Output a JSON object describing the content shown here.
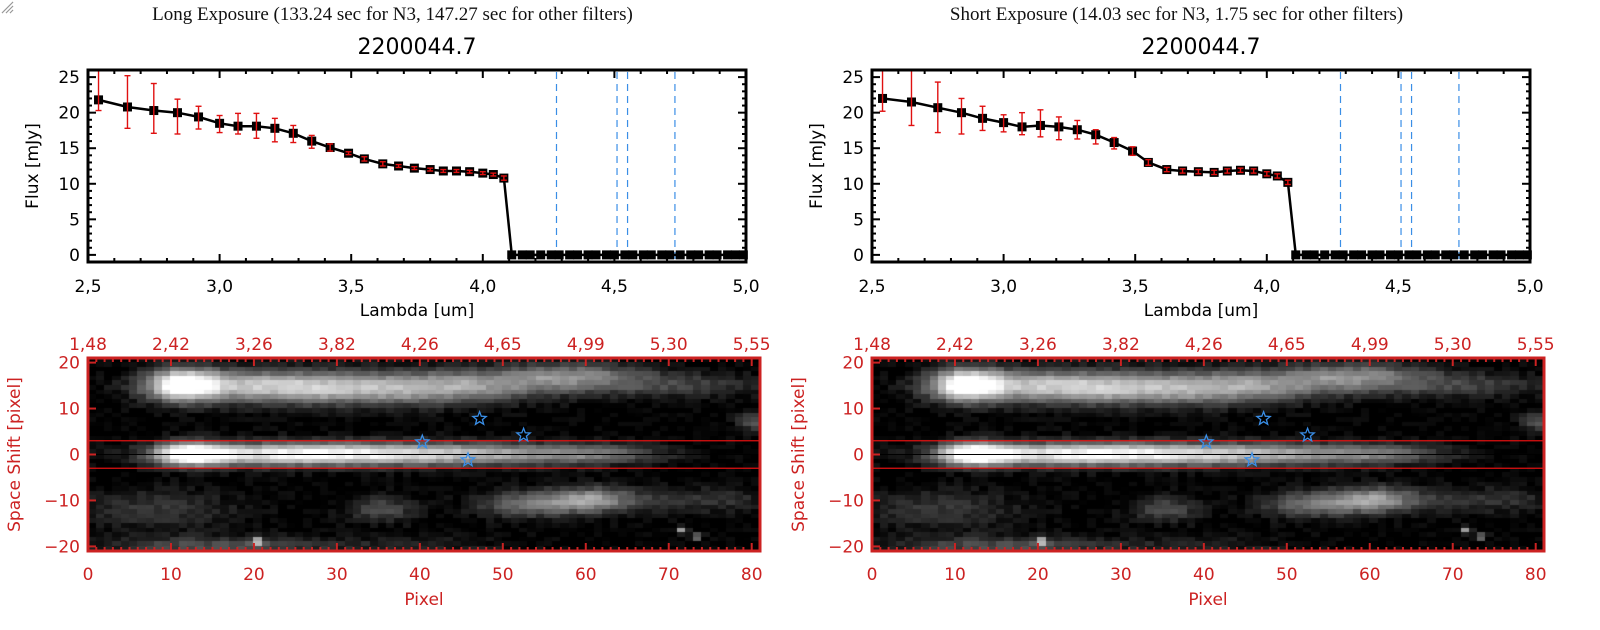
{
  "chart_data": [
    {
      "type": "line",
      "panel": "left",
      "exposure_title": "Long Exposure (133.24 sec for N3, 147.27 sec for other filters)",
      "title": "2200044.7",
      "xlabel": "Lambda [um]",
      "ylabel": "Flux [mJy]",
      "xlim": [
        2.5,
        5.0
      ],
      "ylim": [
        -1,
        26
      ],
      "xticks": [
        "2.5",
        "3.0",
        "3.5",
        "4.0",
        "4.5",
        "5.0"
      ],
      "xtick_values": [
        2.5,
        3.0,
        3.5,
        4.0,
        4.5,
        5.0
      ],
      "yticks": [
        "0",
        "5",
        "10",
        "15",
        "20",
        "25"
      ],
      "ytick_values": [
        0,
        5,
        10,
        15,
        20,
        25
      ],
      "series": [
        {
          "name": "flux",
          "x": [
            2.54,
            2.65,
            2.75,
            2.84,
            2.92,
            3.0,
            3.07,
            3.14,
            3.21,
            3.28,
            3.35,
            3.42,
            3.49,
            3.55,
            3.62,
            3.68,
            3.74,
            3.8,
            3.85,
            3.9,
            3.95,
            4.0,
            4.04,
            4.08,
            4.11,
            4.15,
            4.18,
            4.22,
            4.26,
            4.29,
            4.33,
            4.36,
            4.4,
            4.43,
            4.47,
            4.5,
            4.54,
            4.57,
            4.61,
            4.64,
            4.68,
            4.71,
            4.75,
            4.79,
            4.82,
            4.86,
            4.89,
            4.93,
            4.96,
            4.99
          ],
          "y": [
            21.8,
            20.8,
            20.3,
            20.0,
            19.4,
            18.5,
            18.1,
            18.1,
            17.8,
            17.1,
            16.0,
            15.1,
            14.3,
            13.5,
            12.8,
            12.5,
            12.2,
            12.0,
            11.8,
            11.8,
            11.7,
            11.5,
            11.3,
            10.8,
            0,
            0,
            0,
            0,
            0,
            0,
            0,
            0,
            0,
            0,
            0,
            0,
            0,
            0,
            0,
            0,
            0,
            0,
            0,
            0,
            0,
            0,
            0,
            0,
            0,
            0
          ],
          "yerr_low": [
            20.3,
            17.8,
            17.1,
            17.0,
            17.7,
            17.2,
            17.0,
            16.4,
            15.9,
            15.8,
            15.0,
            14.6,
            14.1,
            13.2,
            12.5,
            12.3,
            12.0,
            11.8,
            11.6,
            11.6,
            11.5,
            11.3,
            11.1,
            10.5
          ],
          "yerr_high": [
            26.0,
            25.2,
            24.1,
            21.9,
            20.9,
            19.6,
            19.9,
            19.9,
            19.2,
            18.2,
            16.8,
            15.6,
            14.5,
            13.8,
            13.1,
            12.7,
            12.4,
            12.2,
            12.0,
            12.0,
            11.9,
            11.7,
            11.5,
            11.1
          ]
        }
      ],
      "filter_lines_um": [
        4.28,
        4.51,
        4.55,
        4.73
      ],
      "zero_line": 0
    },
    {
      "type": "line",
      "panel": "right",
      "exposure_title": "Short Exposure (14.03 sec for N3, 1.75 sec for other filters)",
      "title": "2200044.7",
      "xlabel": "Lambda [um]",
      "ylabel": "Flux [mJy]",
      "xlim": [
        2.5,
        5.0
      ],
      "ylim": [
        -1,
        26
      ],
      "xticks": [
        "2.5",
        "3.0",
        "3.5",
        "4.0",
        "4.5",
        "5.0"
      ],
      "xtick_values": [
        2.5,
        3.0,
        3.5,
        4.0,
        4.5,
        5.0
      ],
      "yticks": [
        "0",
        "5",
        "10",
        "15",
        "20",
        "25"
      ],
      "ytick_values": [
        0,
        5,
        10,
        15,
        20,
        25
      ],
      "series": [
        {
          "name": "flux",
          "x": [
            2.54,
            2.65,
            2.75,
            2.84,
            2.92,
            3.0,
            3.07,
            3.14,
            3.21,
            3.28,
            3.35,
            3.42,
            3.49,
            3.55,
            3.62,
            3.68,
            3.74,
            3.8,
            3.85,
            3.9,
            3.95,
            4.0,
            4.04,
            4.08,
            4.11,
            4.15,
            4.18,
            4.22,
            4.26,
            4.29,
            4.33,
            4.36,
            4.4,
            4.43,
            4.47,
            4.5,
            4.54,
            4.57,
            4.61,
            4.64,
            4.68,
            4.71,
            4.75,
            4.79,
            4.82,
            4.86,
            4.89,
            4.93,
            4.96,
            4.99
          ],
          "y": [
            22.0,
            21.5,
            20.7,
            20.0,
            19.2,
            18.6,
            18.0,
            18.2,
            18.0,
            17.6,
            16.9,
            15.8,
            14.6,
            13.0,
            12.0,
            11.8,
            11.7,
            11.6,
            11.8,
            11.9,
            11.8,
            11.4,
            11.1,
            10.2,
            0,
            0,
            0,
            0,
            0,
            0,
            0,
            0,
            0,
            0,
            0,
            0,
            0,
            0,
            0,
            0,
            0,
            0,
            0,
            0,
            0,
            0,
            0,
            0,
            0,
            0
          ],
          "yerr_low": [
            20.2,
            18.2,
            17.2,
            17.0,
            17.5,
            17.3,
            16.9,
            16.6,
            16.2,
            16.3,
            15.6,
            14.9,
            14.0,
            12.6,
            11.7,
            11.5,
            11.4,
            11.3,
            11.5,
            11.6,
            11.5,
            11.1,
            10.8,
            9.9
          ],
          "yerr_high": [
            26.0,
            26.0,
            24.3,
            22.0,
            20.9,
            19.7,
            20.0,
            20.4,
            19.4,
            18.9,
            17.6,
            16.5,
            15.2,
            13.4,
            12.3,
            12.1,
            12.0,
            11.9,
            12.1,
            12.2,
            12.1,
            11.7,
            11.4,
            10.5
          ]
        }
      ],
      "filter_lines_um": [
        4.28,
        4.51,
        4.55,
        4.73
      ],
      "zero_line": 0
    },
    {
      "type": "heatmap",
      "panel": "left",
      "xlabel": "Pixel",
      "ylabel": "Space Shift [pixel]",
      "xlim": [
        0,
        81
      ],
      "ylim": [
        -21,
        21
      ],
      "xticks": [
        "0",
        "10",
        "20",
        "30",
        "40",
        "50",
        "60",
        "70",
        "80"
      ],
      "xtick_values": [
        0,
        10,
        20,
        30,
        40,
        50,
        60,
        70,
        80
      ],
      "yticks": [
        "-20",
        "-10",
        "0",
        "10",
        "20"
      ],
      "ytick_values": [
        -20,
        -10,
        0,
        10,
        20
      ],
      "top_axis_label_values": [
        "1.48",
        "2.42",
        "3.26",
        "3.82",
        "4.26",
        "4.65",
        "4.99",
        "5.30",
        "5.55"
      ],
      "extraction_box": [
        -3,
        3
      ],
      "center_line": 0,
      "stars": [
        [
          40.3,
          2.7
        ],
        [
          47.2,
          7.8
        ],
        [
          52.5,
          4.2
        ],
        [
          45.8,
          -1.2
        ]
      ]
    },
    {
      "type": "heatmap",
      "panel": "right",
      "xlabel": "Pixel",
      "ylabel": "Space Shift [pixel]",
      "xlim": [
        0,
        81
      ],
      "ylim": [
        -21,
        21
      ],
      "xticks": [
        "0",
        "10",
        "20",
        "30",
        "40",
        "50",
        "60",
        "70",
        "80"
      ],
      "xtick_values": [
        0,
        10,
        20,
        30,
        40,
        50,
        60,
        70,
        80
      ],
      "yticks": [
        "-20",
        "-10",
        "0",
        "10",
        "20"
      ],
      "ytick_values": [
        -20,
        -10,
        0,
        10,
        20
      ],
      "top_axis_label_values": [
        "1.48",
        "2.42",
        "3.26",
        "3.82",
        "4.26",
        "4.65",
        "4.99",
        "5.30",
        "5.55"
      ],
      "extraction_box": [
        -3,
        3
      ],
      "center_line": 0,
      "stars": [
        [
          40.3,
          2.7
        ],
        [
          47.2,
          7.8
        ],
        [
          52.5,
          4.2
        ],
        [
          45.8,
          -1.2
        ]
      ]
    }
  ],
  "colors": {
    "data_line": "#000000",
    "error_bar": "#e01010",
    "filter_line": "#3a8ee6",
    "zero_line": "#e01010",
    "image_axis": "#cc2222",
    "star": "#3a8ee6"
  }
}
